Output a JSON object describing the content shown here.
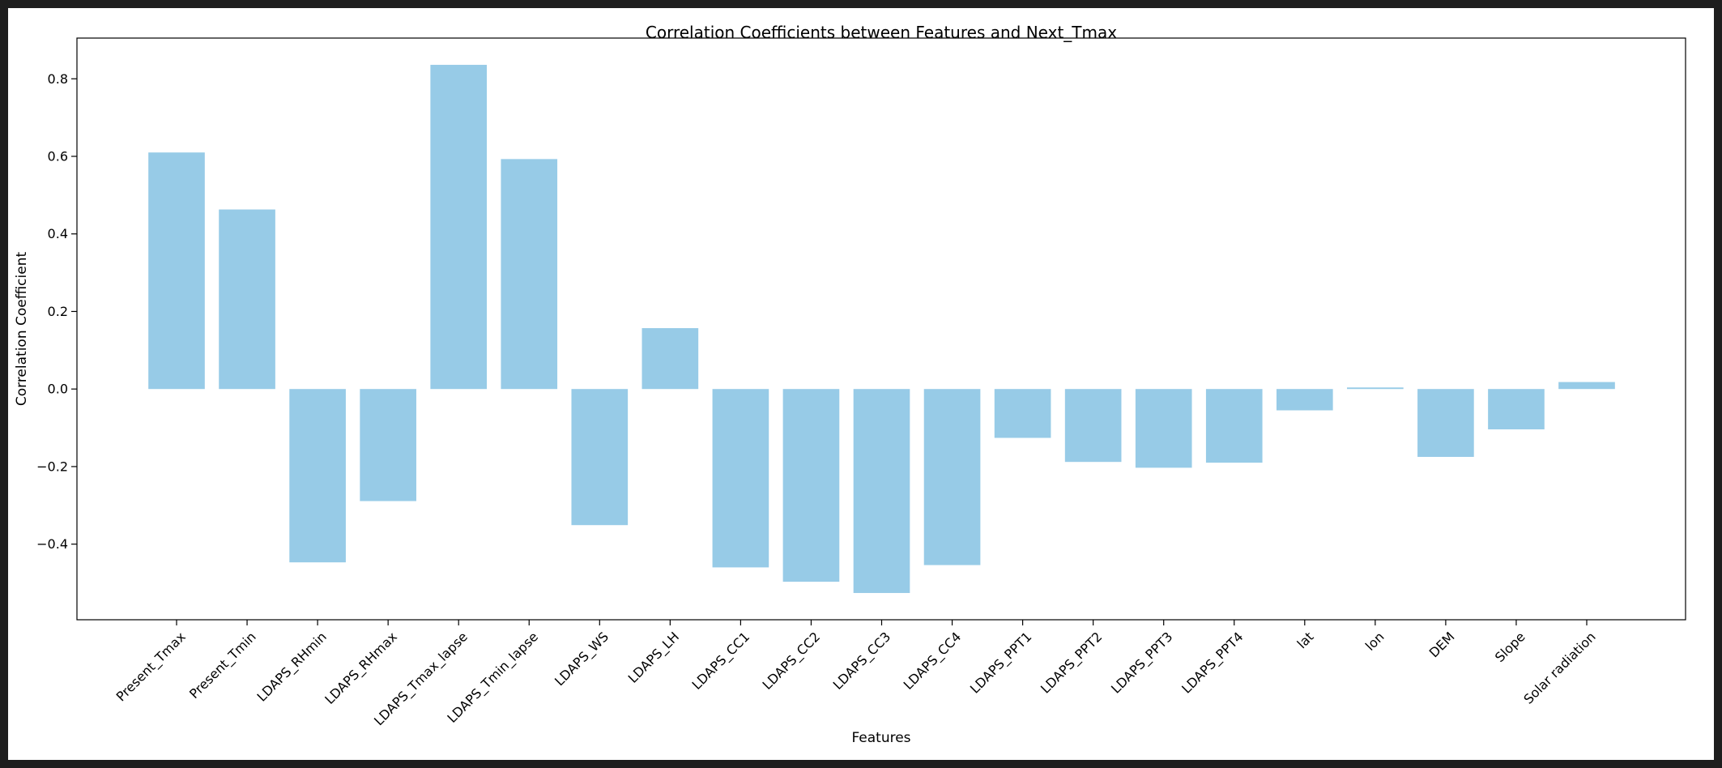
{
  "chart_data": {
    "type": "bar",
    "title": "Correlation Coefficients between Features and Next_Tmax",
    "xlabel": "Features",
    "ylabel": "Correlation Coefficient",
    "categories": [
      "Present_Tmax",
      "Present_Tmin",
      "LDAPS_RHmin",
      "LDAPS_RHmax",
      "LDAPS_Tmax_lapse",
      "LDAPS_Tmin_lapse",
      "LDAPS_WS",
      "LDAPS_LH",
      "LDAPS_CC1",
      "LDAPS_CC2",
      "LDAPS_CC3",
      "LDAPS_CC4",
      "LDAPS_PPT1",
      "LDAPS_PPT2",
      "LDAPS_PPT3",
      "LDAPS_PPT4",
      "lat",
      "lon",
      "DEM",
      "Slope",
      "Solar radiation"
    ],
    "values": [
      0.61,
      0.463,
      -0.447,
      -0.289,
      0.836,
      0.593,
      -0.351,
      0.157,
      -0.46,
      -0.497,
      -0.526,
      -0.454,
      -0.126,
      -0.188,
      -0.203,
      -0.19,
      -0.055,
      0.004,
      -0.175,
      -0.104,
      0.018
    ],
    "yticks": [
      -0.4,
      -0.2,
      0.0,
      0.2,
      0.4,
      0.6,
      0.8
    ],
    "ytick_labels": [
      "−0.4",
      "−0.2",
      "0.0",
      "0.2",
      "0.4",
      "0.6",
      "0.8"
    ],
    "ylim": [
      -0.595,
      0.905
    ],
    "bar_color": "#97cbe7",
    "grid": false,
    "legend": "none"
  }
}
